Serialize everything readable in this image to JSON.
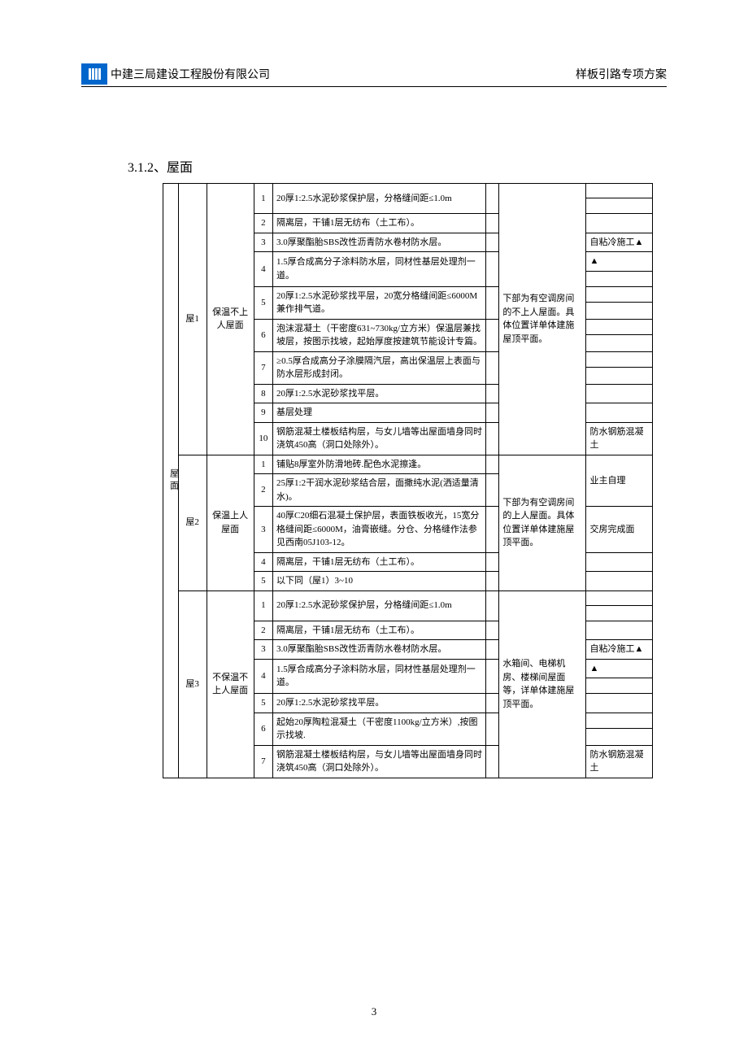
{
  "header": {
    "company": "中建三局建设工程股份有限公司",
    "doc_title": "样板引路专项方案"
  },
  "section_title": "3.1.2、屋面",
  "page_number": "3",
  "category_label": "屋面",
  "groups": [
    {
      "code": "屋1",
      "type": "保温不上人屋面",
      "location": "下部为有空调房间的不上人屋面。具体位置详单体建施屋顶平面。",
      "rows": [
        {
          "num": "1",
          "desc": "20厚1:2.5水泥砂浆保护层，分格缝间距≤1.0m",
          "note_top": "",
          "note_bot": ""
        },
        {
          "num": "2",
          "desc": "隔离层，干铺1层无纺布（土工布）。",
          "note": ""
        },
        {
          "num": "3",
          "desc": "3.0厚聚酯胎SBS改性沥青防水卷材防水层。",
          "note": "自粘冷施工▲"
        },
        {
          "num": "4",
          "desc": "1.5厚合成高分子涂料防水层，同材性基层处理剂一道。",
          "note_top": "▲",
          "note_bot": ""
        },
        {
          "num": "5",
          "desc": "20厚1:2.5水泥砂浆找平层，20宽分格缝间距≤6000M兼作排气道。",
          "note_top": "",
          "note_bot": ""
        },
        {
          "num": "6",
          "desc": "泡沫混凝土（干密度631~730kg/立方米）保温层兼找坡层，按图示找坡，起始厚度按建筑节能设计专篇。",
          "note_top": "",
          "note_bot": ""
        },
        {
          "num": "7",
          "desc": "≥0.5厚合成高分子涂膜隔汽层，高出保温层上表面与防水层形成封闭。",
          "note_top": "",
          "note_bot": ""
        },
        {
          "num": "8",
          "desc": "20厚1:2.5水泥砂浆找平层。",
          "note": ""
        },
        {
          "num": "9",
          "desc": "基层处理",
          "note": ""
        },
        {
          "num": "10",
          "desc": "钢筋混凝土楼板结构层，与女儿墙等出屋面墙身同时浇筑450高（洞口处除外）。",
          "note": "防水钢筋混凝土"
        }
      ]
    },
    {
      "code": "屋2",
      "type": "保温上人屋面",
      "location": "下部为有空调房间的上人屋面。具体位置详单体建施屋顶平面。",
      "rows": [
        {
          "num": "1",
          "desc": "铺贴8厚室外防滑地砖.配色水泥擦逢。",
          "note": "",
          "note_merged_below": true
        },
        {
          "num": "2",
          "desc": "25厚1:2干润水泥砂浆结合层，面撒纯水泥(洒适量清水)。",
          "note": "业主自理"
        },
        {
          "num": "3",
          "desc": "40厚C20细石混凝土保护层，表面铁板收光，15宽分格缝间距≤6000M，油膏嵌缝。分仓、分格缝作法参见西南05J103-12。",
          "note": "交房完成面"
        },
        {
          "num": "4",
          "desc": "隔离层，干铺1层无纺布（土工布）。",
          "note": ""
        },
        {
          "num": "5",
          "desc": "以下同（屋1）3~10",
          "note": ""
        }
      ]
    },
    {
      "code": "屋3",
      "type": "不保温不上人屋面",
      "location": "水箱间、电梯机房、楼梯间屋面等，详单体建施屋顶平面。",
      "rows": [
        {
          "num": "1",
          "desc": "20厚1:2.5水泥砂浆保护层，分格缝间距≤1.0m",
          "note_top": "",
          "note_bot": ""
        },
        {
          "num": "2",
          "desc": "隔离层，干铺1层无纺布（土工布）。",
          "note": ""
        },
        {
          "num": "3",
          "desc": "3.0厚聚酯胎SBS改性沥青防水卷材防水层。",
          "note": "自粘冷施工▲"
        },
        {
          "num": "4",
          "desc": "1.5厚合成高分子涂料防水层，同材性基层处理剂一道。",
          "note_top": "▲",
          "note_bot": ""
        },
        {
          "num": "5",
          "desc": "20厚1:2.5水泥砂浆找平层。",
          "note": ""
        },
        {
          "num": "6",
          "desc": "起始20厚陶粒混凝土（干密度1100kg/立方米）,按图示找坡.",
          "note_top": "",
          "note_bot": ""
        },
        {
          "num": "7",
          "desc": "钢筋混凝土楼板结构层，与女儿墙等出屋面墙身同时浇筑450高（洞口处除外）。",
          "note": "防水钢筋混凝土"
        }
      ]
    }
  ]
}
